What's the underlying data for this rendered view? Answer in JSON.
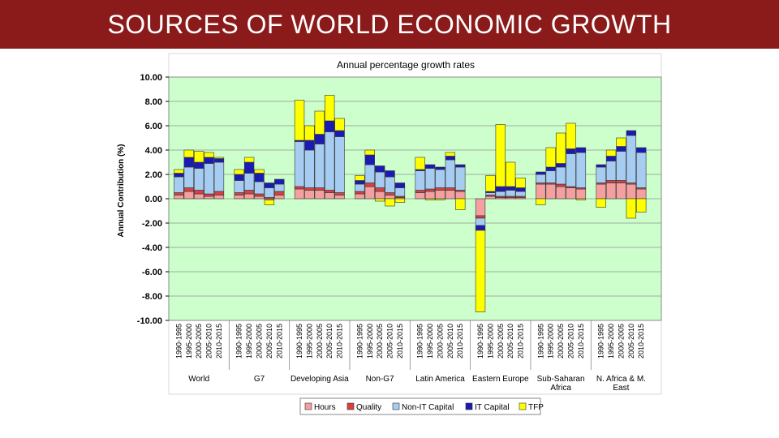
{
  "slide": {
    "title": "SOURCES OF WORLD ECONOMIC GROWTH"
  },
  "colors": {
    "title_bar": "#8b1a1a",
    "plot_bg": "#ccffcc"
  },
  "chart_data": {
    "type": "bar",
    "stacked": true,
    "title": "Annual percentage growth rates",
    "ylabel": "Annual Contribution (%)",
    "ylim": [
      -10,
      10
    ],
    "yticks": [
      "10.00",
      "8.00",
      "6.00",
      "4.00",
      "2.00",
      "0.00",
      "-2.00",
      "-4.00",
      "-6.00",
      "-8.00",
      "-10.00"
    ],
    "ytick_values": [
      10,
      8,
      6,
      4,
      2,
      0,
      -2,
      -4,
      -6,
      -8,
      -10
    ],
    "grid": true,
    "legend_position": "bottom",
    "periods": [
      "1990-1995",
      "1995-2000",
      "2000-2005",
      "2005-2010",
      "2010-2015"
    ],
    "groups": [
      "World",
      "G7",
      "Developing Asia",
      "Non-G7",
      "Latin America",
      "Eastern Europe",
      "Sub-Saharan Africa",
      "N. Africa & M. East"
    ],
    "series": [
      {
        "name": "Hours",
        "color": "#f4a0a0",
        "values": [
          [
            0.3,
            0.6,
            0.4,
            0.2,
            0.3
          ],
          [
            0.3,
            0.4,
            0.2,
            -0.1,
            0.3
          ],
          [
            0.8,
            0.7,
            0.7,
            0.5,
            0.3
          ],
          [
            0.4,
            1.0,
            0.6,
            0.3,
            0.1
          ],
          [
            0.5,
            0.6,
            0.7,
            0.7,
            0.6
          ],
          [
            -1.4,
            0.2,
            0.1,
            0.1,
            0.1
          ],
          [
            1.2,
            1.2,
            1.0,
            0.9,
            0.8
          ],
          [
            1.2,
            1.3,
            1.3,
            1.2,
            0.8
          ]
        ]
      },
      {
        "name": "Quality",
        "color": "#d94040",
        "values": [
          [
            0.2,
            0.3,
            0.3,
            0.2,
            0.3
          ],
          [
            0.2,
            0.3,
            0.2,
            0.1,
            0.3
          ],
          [
            0.2,
            0.2,
            0.2,
            0.2,
            0.2
          ],
          [
            0.2,
            0.3,
            0.3,
            0.2,
            0.1
          ],
          [
            0.2,
            0.2,
            0.2,
            0.2,
            0.1
          ],
          [
            -0.2,
            0.1,
            0.1,
            0.1,
            0.1
          ],
          [
            0.1,
            0.1,
            0.2,
            0.1,
            0.1
          ],
          [
            0.1,
            0.2,
            0.2,
            0.1,
            0.1
          ]
        ]
      },
      {
        "name": "Non-IT Capital",
        "color": "#a6ccf2",
        "values": [
          [
            1.3,
            1.7,
            1.8,
            2.5,
            2.4
          ],
          [
            1.0,
            1.4,
            1.0,
            0.8,
            0.6
          ],
          [
            3.7,
            3.1,
            3.6,
            4.8,
            4.6
          ],
          [
            0.6,
            1.5,
            1.3,
            1.3,
            0.7
          ],
          [
            1.6,
            1.7,
            1.5,
            2.3,
            1.9
          ],
          [
            -0.6,
            0.2,
            0.4,
            0.5,
            0.4
          ],
          [
            0.7,
            1.0,
            1.4,
            2.7,
            2.9
          ],
          [
            1.3,
            1.6,
            2.4,
            3.9,
            2.9
          ]
        ]
      },
      {
        "name": "IT Capital",
        "color": "#1a1ab4",
        "values": [
          [
            0.3,
            0.8,
            0.5,
            0.5,
            0.3
          ],
          [
            0.5,
            0.9,
            0.7,
            0.4,
            0.4
          ],
          [
            0.1,
            0.8,
            0.8,
            0.9,
            0.5
          ],
          [
            0.3,
            0.8,
            0.5,
            0.5,
            0.4
          ],
          [
            0.1,
            0.3,
            0.2,
            0.3,
            0.2
          ],
          [
            -0.4,
            0.1,
            0.4,
            0.3,
            0.3
          ],
          [
            0.2,
            0.3,
            0.3,
            0.4,
            0.4
          ],
          [
            0.2,
            0.4,
            0.4,
            0.4,
            0.4
          ]
        ]
      },
      {
        "name": "TFP",
        "color": "#ffff00",
        "values": [
          [
            0.3,
            0.6,
            0.9,
            0.4,
            0.1
          ],
          [
            0.4,
            0.4,
            0.3,
            -0.4,
            0.0
          ],
          [
            3.3,
            1.2,
            1.9,
            2.1,
            1.0
          ],
          [
            0.4,
            0.4,
            -0.2,
            -0.6,
            -0.3
          ],
          [
            1.0,
            -0.1,
            -0.1,
            0.3,
            -0.9
          ],
          [
            -6.7,
            1.3,
            5.1,
            2.0,
            0.8
          ],
          [
            -0.5,
            1.6,
            2.5,
            2.1,
            -0.1
          ],
          [
            -0.7,
            0.5,
            0.7,
            -1.6,
            -1.1
          ]
        ]
      }
    ]
  }
}
